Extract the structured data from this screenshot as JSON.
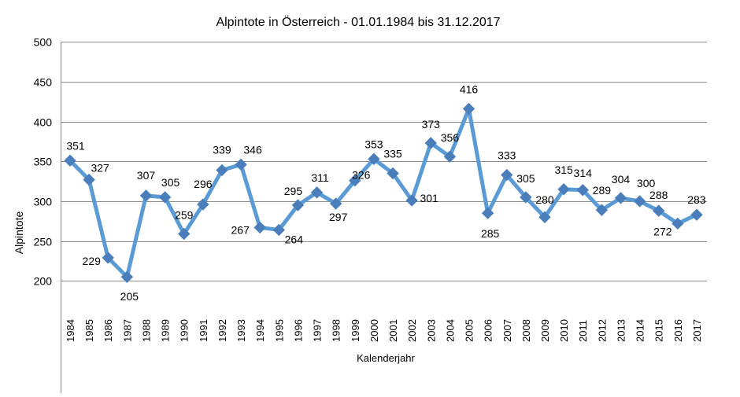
{
  "chart_data": {
    "type": "line",
    "title": "Alpintote in Österreich - 01.01.1984 bis 31.12.2017",
    "xlabel": "Kalenderjahr",
    "ylabel": "Alpintote",
    "ylim": [
      200,
      500
    ],
    "yticks": [
      200,
      250,
      300,
      350,
      400,
      450,
      500
    ],
    "grid": true,
    "legend": "none",
    "series_color": "#5B9BD5",
    "categories": [
      "1984",
      "1985",
      "1986",
      "1987",
      "1988",
      "1989",
      "1990",
      "1991",
      "1992",
      "1993",
      "1994",
      "1995",
      "1996",
      "1997",
      "1998",
      "1999",
      "2000",
      "2001",
      "2002",
      "2003",
      "2004",
      "2005",
      "2006",
      "2007",
      "2008",
      "2009",
      "2010",
      "2011",
      "2012",
      "2013",
      "2014",
      "2015",
      "2016",
      "2017"
    ],
    "values": [
      351,
      327,
      229,
      205,
      307,
      305,
      259,
      296,
      339,
      346,
      267,
      264,
      295,
      311,
      297,
      326,
      353,
      335,
      301,
      373,
      356,
      416,
      285,
      333,
      305,
      280,
      315,
      314,
      289,
      304,
      300,
      288,
      272,
      283
    ]
  }
}
